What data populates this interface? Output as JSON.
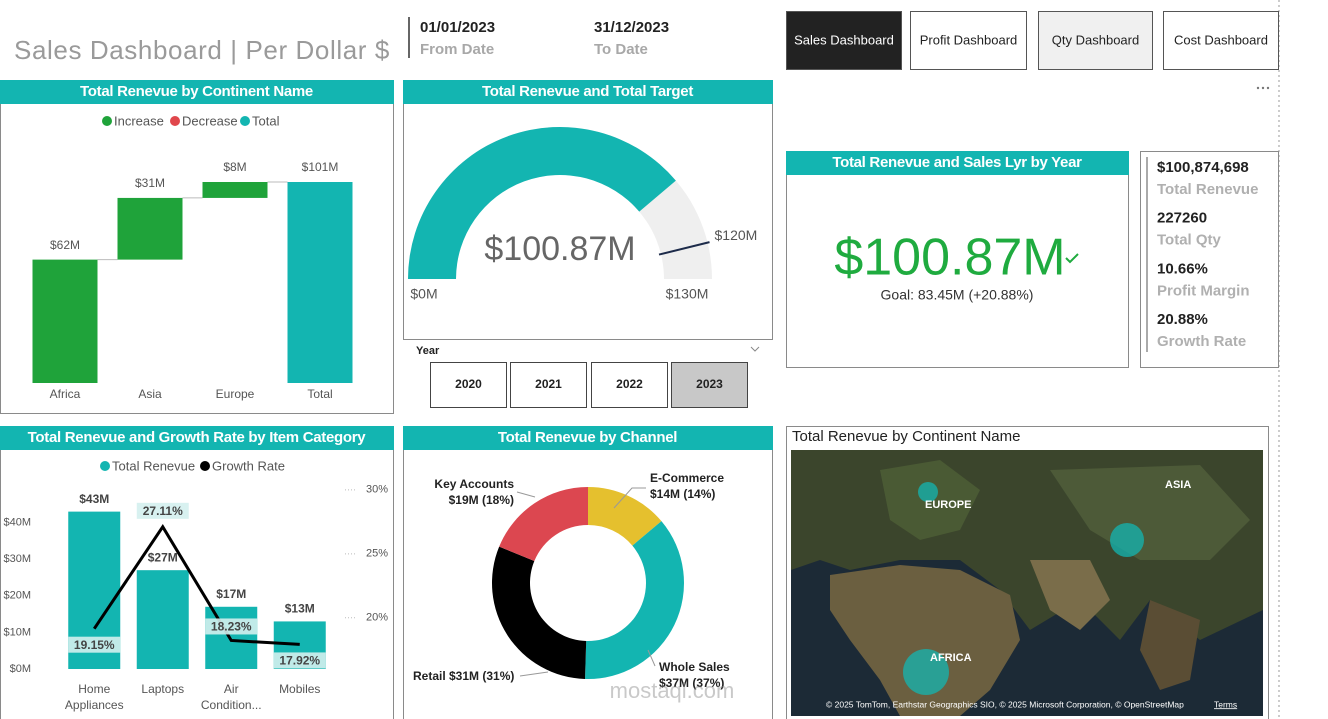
{
  "header": {
    "title": "Sales Dashboard | Per Dollar $",
    "from_date": "01/01/2023",
    "from_label": "From Date",
    "to_date": "31/12/2023",
    "to_label": "To Date"
  },
  "nav": [
    "Sales Dashboard",
    "Profit Dashboard",
    "Qty Dashboard",
    "Cost Dashboard"
  ],
  "chart_data": [
    {
      "type": "waterfall",
      "title": "Total Renevue by Continent Name",
      "legend": [
        {
          "name": "Increase",
          "color": "#1fa33a"
        },
        {
          "name": "Decrease",
          "color": "#e0474c"
        },
        {
          "name": "Total",
          "color": "#13b5b1"
        }
      ],
      "categories": [
        "Africa",
        "Asia",
        "Europe",
        "Total"
      ],
      "values": [
        62,
        31,
        8,
        101
      ],
      "value_labels": [
        "$62M",
        "$31M",
        "$8M",
        "$101M"
      ],
      "kinds": [
        0,
        0,
        0,
        2
      ]
    },
    {
      "type": "gauge",
      "title": "Total Renevue and Total Target",
      "value": 100.87,
      "value_label": "$100.87M",
      "min": {
        "value": 0,
        "label": "$0M"
      },
      "max": {
        "value": 130,
        "label": "$130M"
      },
      "target": {
        "value": 120,
        "label": "$120M"
      },
      "color": "#13b5b1",
      "track_color": "#efefef",
      "target_color": "#1d2b4a"
    },
    {
      "type": "kpi",
      "title": "Total Renevue and Sales Lyr by Year",
      "value": 100.87,
      "value_label": "$100.87M",
      "goal_label": "Goal: 83.45M (+20.88%)",
      "color": "#1fab3f"
    },
    {
      "type": "combo",
      "title": "Total Renevue and Growth Rate by Item Category",
      "categories": [
        "Home Appliances",
        "Laptops",
        "Air Condition...",
        "Mobiles"
      ],
      "series": [
        {
          "name": "Total Renevue",
          "color": "#13b5b1",
          "values": [
            43,
            27,
            17,
            13
          ],
          "value_labels": [
            "$43M",
            "$27M",
            "$17M",
            "$13M"
          ]
        },
        {
          "name": "Growth Rate",
          "color": "#000000",
          "axis": "y2",
          "values": [
            19.15,
            27.11,
            18.23,
            17.92
          ],
          "value_labels": [
            "19.15%",
            "27.11%",
            "18.23%",
            "17.92%"
          ]
        }
      ],
      "ylim": [
        0,
        50
      ],
      "yticks": [
        {
          "value": 0,
          "label": "$0M"
        },
        {
          "value": 10,
          "label": "$10M"
        },
        {
          "value": 20,
          "label": "$20M"
        },
        {
          "value": 30,
          "label": "$30M"
        },
        {
          "value": 40,
          "label": "$40M"
        }
      ],
      "y2lim": [
        16,
        30.3
      ],
      "y2ticks": [
        {
          "value": 20,
          "label": "20%"
        },
        {
          "value": 25,
          "label": "25%"
        },
        {
          "value": 30,
          "label": "30%"
        }
      ]
    },
    {
      "type": "donut",
      "title": "Total Renevue by Channel",
      "categories": [
        "E-Commerce",
        "Whole Sales",
        "Retail",
        "Key Accounts"
      ],
      "values": [
        14,
        37,
        31,
        19
      ],
      "value_labels": [
        "$14M (14%)",
        "$37M (37%)",
        "$31M (31%)",
        "$19M (18%)"
      ],
      "colors": [
        "#e5c02e",
        "#13b5b1",
        "#000000",
        "#dc4750"
      ]
    }
  ],
  "slicer": {
    "label": "Year",
    "options": [
      "2020",
      "2021",
      "2022",
      "2023"
    ],
    "selected": 3
  },
  "cards": [
    {
      "value": "$100,874,698",
      "label": "Total Renevue"
    },
    {
      "value": "227260",
      "label": "Total Qty"
    },
    {
      "value": "10.66%",
      "label": "Profit Margin"
    },
    {
      "value": "20.88%",
      "label": "Growth Rate"
    }
  ],
  "map": {
    "title": "Total Renevue by Continent Name",
    "labels": [
      "EUROPE",
      "ASIA",
      "AFRICA"
    ],
    "attribution": "© 2025 TomTom, Earthstar Geographics SIO, © 2025 Microsoft Corporation, © OpenStreetMap",
    "terms": "Terms"
  },
  "watermark": "mostaql.com"
}
